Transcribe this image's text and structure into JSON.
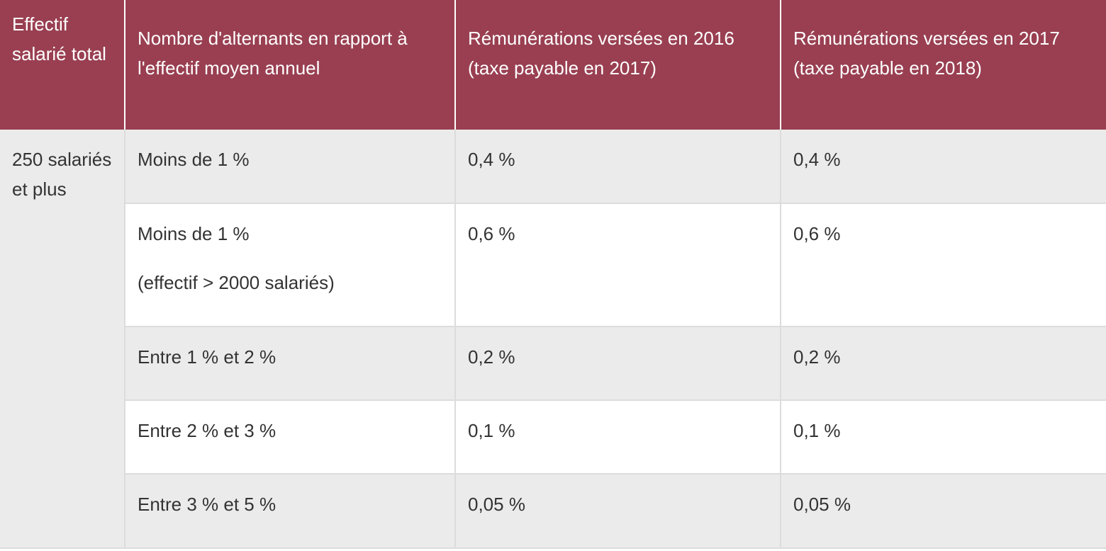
{
  "table": {
    "headers": {
      "effectif": "Effectif salarié total",
      "rapport": "Nombre d'alternants en rapport à l'effectif moyen annuel",
      "remu_2016": "Rémunérations versées en 2016 (taxe payable en 2017)",
      "remu_2017": "Rémunérations versées en 2017 (taxe payable en 2018)"
    },
    "group_label": "250 salariés et plus",
    "rows": [
      {
        "rapport": "Moins de 1 %",
        "rapport_note": "",
        "remu_2016": "0,4 %",
        "remu_2017": "0,4 %"
      },
      {
        "rapport": "Moins de 1 %",
        "rapport_note": "(effectif > 2000  salariés)",
        "remu_2016": "0,6 %",
        "remu_2017": "0,6 %"
      },
      {
        "rapport": "Entre 1 % et 2 %",
        "rapport_note": "",
        "remu_2016": "0,2 %",
        "remu_2017": "0,2 %"
      },
      {
        "rapport": "Entre 2 % et 3 %",
        "rapport_note": "",
        "remu_2016": "0,1 %",
        "remu_2017": "0,1 %"
      },
      {
        "rapport": "Entre 3 % et 5 %",
        "rapport_note": "",
        "remu_2016": "0,05 %",
        "remu_2017": "0,05 %"
      }
    ]
  },
  "colors": {
    "header_background": "#993f51",
    "header_text": "#ffffff",
    "row_shade": "#ebebeb",
    "border": "#dcdcdc",
    "body_text": "#333333"
  }
}
